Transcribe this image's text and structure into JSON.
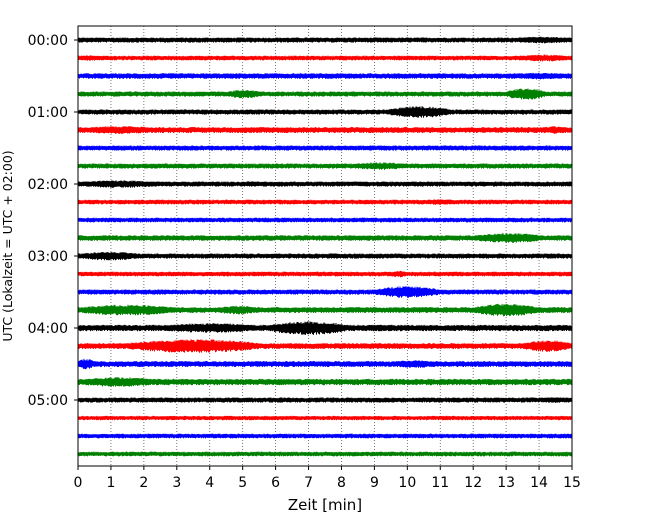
{
  "chart_data": {
    "type": "line",
    "title": "",
    "xlabel": "Zeit  [min]",
    "ylabel": "UTC (Lokalzeit = UTC + 02:00)",
    "xlim": [
      0,
      15
    ],
    "x_ticks": [
      0,
      1,
      2,
      3,
      4,
      5,
      6,
      7,
      8,
      9,
      10,
      11,
      12,
      13,
      14,
      15
    ],
    "x_grid": true,
    "y_tick_labels": [
      "00:00",
      "01:00",
      "02:00",
      "03:00",
      "04:00",
      "05:00"
    ],
    "trace_colors": [
      "#000000",
      "#ff0000",
      "#0000ff",
      "#008000"
    ],
    "trace_start_times": [
      "00:00",
      "00:15",
      "00:30",
      "00:45",
      "01:00",
      "01:15",
      "01:30",
      "01:45",
      "02:00",
      "02:15",
      "02:30",
      "02:45",
      "03:00",
      "03:15",
      "03:30",
      "03:45",
      "04:00",
      "04:15",
      "04:30",
      "04:45",
      "05:00",
      "05:15",
      "05:30",
      "05:45"
    ],
    "base_amplitude": [
      2.2,
      2.0,
      2.4,
      2.2,
      2.2,
      2.6,
      2.2,
      2.2,
      2.2,
      2.0,
      2.0,
      2.4,
      2.2,
      2.0,
      2.2,
      2.6,
      2.8,
      2.6,
      2.6,
      2.8,
      2.2,
      1.8,
      2.0,
      2.0
    ],
    "events": [
      {
        "trace": 0,
        "start": 13.2,
        "end": 15.0,
        "amplitude": 3.0
      },
      {
        "trace": 1,
        "start": 0.0,
        "end": 0.7,
        "amplitude": 2.5
      },
      {
        "trace": 1,
        "start": 13.3,
        "end": 15.0,
        "amplitude": 3.0
      },
      {
        "trace": 2,
        "start": 13.0,
        "end": 15.0,
        "amplitude": 3.0
      },
      {
        "trace": 3,
        "start": 4.5,
        "end": 5.6,
        "amplitude": 4.0
      },
      {
        "trace": 3,
        "start": 13.0,
        "end": 14.2,
        "amplitude": 5.5
      },
      {
        "trace": 4,
        "start": 9.4,
        "end": 11.3,
        "amplitude": 5.5
      },
      {
        "trace": 5,
        "start": 0.0,
        "end": 2.5,
        "amplitude": 3.5
      },
      {
        "trace": 5,
        "start": 14.0,
        "end": 15.0,
        "amplitude": 3.5
      },
      {
        "trace": 7,
        "start": 8.3,
        "end": 10.0,
        "amplitude": 3.5
      },
      {
        "trace": 8,
        "start": 0.0,
        "end": 2.5,
        "amplitude": 3.5
      },
      {
        "trace": 8,
        "start": 5.0,
        "end": 5.5,
        "amplitude": 2.5
      },
      {
        "trace": 9,
        "start": 10.5,
        "end": 11.5,
        "amplitude": 2.5
      },
      {
        "trace": 11,
        "start": 12.0,
        "end": 14.2,
        "amplitude": 4.5
      },
      {
        "trace": 12,
        "start": 0.0,
        "end": 1.9,
        "amplitude": 4.0
      },
      {
        "trace": 13,
        "start": 9.5,
        "end": 10.0,
        "amplitude": 3.0
      },
      {
        "trace": 14,
        "start": 9.0,
        "end": 11.0,
        "amplitude": 5.5
      },
      {
        "trace": 15,
        "start": 0.0,
        "end": 3.0,
        "amplitude": 5.0
      },
      {
        "trace": 15,
        "start": 4.2,
        "end": 5.5,
        "amplitude": 4.0
      },
      {
        "trace": 15,
        "start": 12.0,
        "end": 14.0,
        "amplitude": 6.0
      },
      {
        "trace": 16,
        "start": 2.5,
        "end": 5.5,
        "amplitude": 4.5
      },
      {
        "trace": 16,
        "start": 5.8,
        "end": 8.2,
        "amplitude": 6.5
      },
      {
        "trace": 16,
        "start": 8.3,
        "end": 10.0,
        "amplitude": 3.0
      },
      {
        "trace": 17,
        "start": 1.5,
        "end": 5.5,
        "amplitude": 6.5
      },
      {
        "trace": 17,
        "start": 13.5,
        "end": 15.0,
        "amplitude": 5.5
      },
      {
        "trace": 18,
        "start": 0.0,
        "end": 0.5,
        "amplitude": 5.0
      },
      {
        "trace": 18,
        "start": 9.5,
        "end": 11.0,
        "amplitude": 3.5
      },
      {
        "trace": 19,
        "start": 0.0,
        "end": 2.5,
        "amplitude": 4.5
      },
      {
        "trace": 20,
        "start": 14.0,
        "end": 15.0,
        "amplitude": 2.5
      }
    ]
  }
}
